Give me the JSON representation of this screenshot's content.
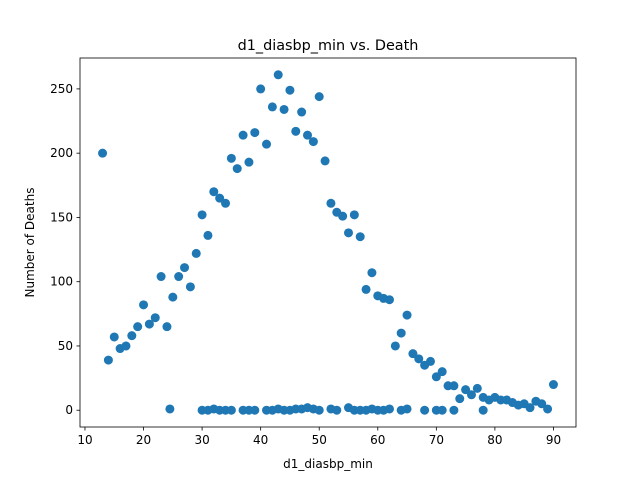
{
  "chart_data": {
    "type": "scatter",
    "title": "d1_diasbp_min vs. Death",
    "xlabel": "d1_diasbp_min",
    "ylabel": "Number of Deaths",
    "xlim": [
      9.15,
      93.85
    ],
    "ylim": [
      -13.05,
      274.05
    ],
    "xticks": [
      10,
      20,
      30,
      40,
      50,
      60,
      70,
      80,
      90
    ],
    "yticks": [
      0,
      50,
      100,
      150,
      200,
      250
    ],
    "grid": false,
    "marker_color": "#1f77b4",
    "series": [
      {
        "points": [
          [
            13,
            200
          ],
          [
            14,
            39
          ],
          [
            15,
            57
          ],
          [
            16,
            48
          ],
          [
            17,
            50
          ],
          [
            18,
            58
          ],
          [
            19,
            65
          ],
          [
            20,
            82
          ],
          [
            21,
            67
          ],
          [
            22,
            72
          ],
          [
            23,
            104
          ],
          [
            24,
            65
          ],
          [
            24.5,
            1
          ],
          [
            25,
            88
          ],
          [
            26,
            104
          ],
          [
            27,
            111
          ],
          [
            28,
            96
          ],
          [
            29,
            122
          ],
          [
            30,
            152
          ],
          [
            31,
            136
          ],
          [
            32,
            170
          ],
          [
            33,
            165
          ],
          [
            34,
            161
          ],
          [
            35,
            196
          ],
          [
            36,
            188
          ],
          [
            37,
            214
          ],
          [
            38,
            193
          ],
          [
            39,
            216
          ],
          [
            40,
            250
          ],
          [
            41,
            207
          ],
          [
            42,
            236
          ],
          [
            43,
            261
          ],
          [
            44,
            234
          ],
          [
            45,
            249
          ],
          [
            46,
            217
          ],
          [
            47,
            232
          ],
          [
            48,
            214
          ],
          [
            49,
            209
          ],
          [
            50,
            244
          ],
          [
            51,
            194
          ],
          [
            52,
            161
          ],
          [
            53,
            154
          ],
          [
            54,
            151
          ],
          [
            55,
            138
          ],
          [
            56,
            152
          ],
          [
            57,
            135
          ],
          [
            58,
            94
          ],
          [
            59,
            107
          ],
          [
            60,
            89
          ],
          [
            61,
            87
          ],
          [
            62,
            86
          ],
          [
            63,
            50
          ],
          [
            64,
            60
          ],
          [
            65,
            74
          ],
          [
            66,
            44
          ],
          [
            67,
            40
          ],
          [
            68,
            35
          ],
          [
            69,
            38
          ],
          [
            70,
            26
          ],
          [
            71,
            30
          ],
          [
            72,
            19
          ],
          [
            73,
            19
          ],
          [
            74,
            9
          ],
          [
            75,
            16
          ],
          [
            76,
            12
          ],
          [
            77,
            17
          ],
          [
            78,
            10
          ],
          [
            79,
            8
          ],
          [
            80,
            10
          ],
          [
            81,
            8
          ],
          [
            82,
            8
          ],
          [
            83,
            6
          ],
          [
            84,
            4
          ],
          [
            85,
            5
          ],
          [
            86,
            2
          ],
          [
            87,
            7
          ],
          [
            88,
            5
          ],
          [
            89,
            1
          ],
          [
            90,
            20
          ],
          [
            30,
            0
          ],
          [
            31,
            0
          ],
          [
            32,
            1
          ],
          [
            33,
            0
          ],
          [
            34,
            0
          ],
          [
            35,
            0
          ],
          [
            37,
            0
          ],
          [
            38,
            0
          ],
          [
            39,
            0
          ],
          [
            41,
            0
          ],
          [
            42,
            0
          ],
          [
            43,
            1
          ],
          [
            44,
            0
          ],
          [
            45,
            0
          ],
          [
            46,
            1
          ],
          [
            47,
            1
          ],
          [
            48,
            2
          ],
          [
            49,
            1
          ],
          [
            50,
            0
          ],
          [
            52,
            1
          ],
          [
            53,
            0
          ],
          [
            55,
            2
          ],
          [
            56,
            0
          ],
          [
            57,
            0
          ],
          [
            58,
            0
          ],
          [
            59,
            1
          ],
          [
            60,
            0
          ],
          [
            61,
            0
          ],
          [
            62,
            1
          ],
          [
            64,
            0
          ],
          [
            65,
            1
          ],
          [
            68,
            0
          ],
          [
            70,
            0
          ],
          [
            71,
            0
          ],
          [
            73,
            0
          ],
          [
            78,
            0
          ]
        ]
      }
    ]
  }
}
